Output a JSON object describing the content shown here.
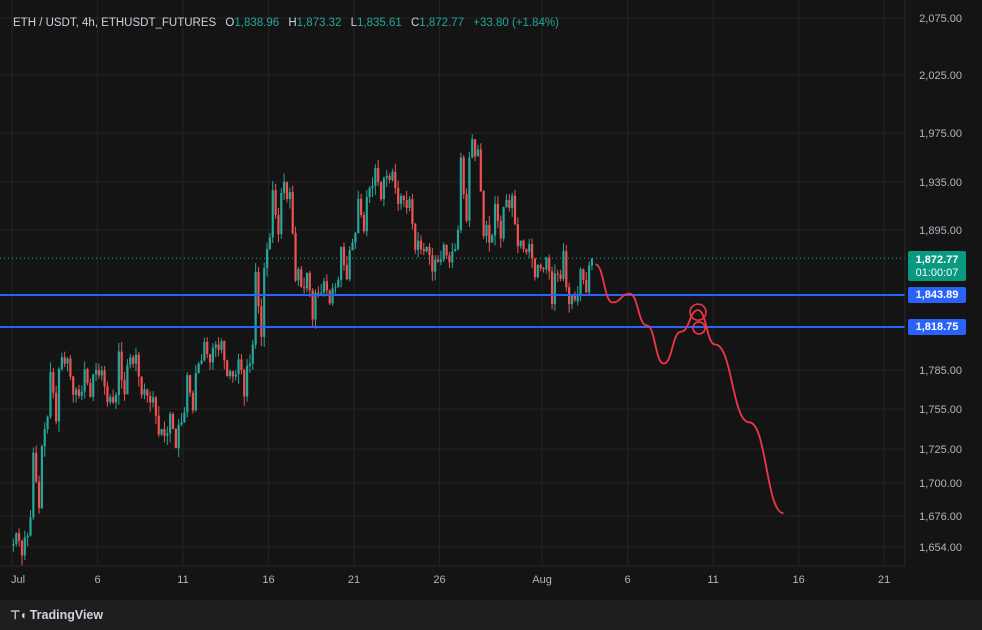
{
  "header": {
    "symbol": "ETH / USDT, 4h, ETHUSDT_FUTURES",
    "open_label": "O",
    "open": "1,838.96",
    "high_label": "H",
    "high": "1,873.32",
    "low_label": "L",
    "low": "1,835.61",
    "close_label": "C",
    "close": "1,872.77",
    "change": "+33.80 (+1.84%)"
  },
  "price_axis": {
    "ticks": [
      "2,075.00",
      "2,025.00",
      "1,975.00",
      "1,935.00",
      "1,895.00",
      "1,785.00",
      "1,755.00",
      "1,725.00",
      "1,700.00",
      "1,676.00",
      "1,654.00"
    ]
  },
  "badges": {
    "last_price": "1,872.77",
    "countdown": "01:00:07",
    "level_upper": "1,843.89",
    "level_lower": "1,818.75"
  },
  "colors": {
    "up": "#26a69a",
    "down": "#ef5350",
    "level": "#2962ff",
    "projection": "#f23645"
  },
  "footer": {
    "brand": "TradingView",
    "logo": "tradingview-logo"
  },
  "chart_data": {
    "type": "candlestick",
    "interval": "4h",
    "x_ticks": [
      "Jul",
      "6",
      "11",
      "16",
      "21",
      "26",
      "Aug",
      "6",
      "11",
      "16",
      "21"
    ],
    "horizontal_levels": [
      1843.89,
      1818.75
    ],
    "last_price": 1872.77,
    "series_ohlc_approx": [
      {
        "date": "Jul 1",
        "o": 1655,
        "h": 1668,
        "l": 1640,
        "c": 1662
      },
      {
        "date": "Jul 2",
        "o": 1662,
        "h": 1745,
        "l": 1660,
        "c": 1740
      },
      {
        "date": "Jul 3",
        "o": 1740,
        "h": 1800,
        "l": 1725,
        "c": 1795
      },
      {
        "date": "Jul 4",
        "o": 1795,
        "h": 1800,
        "l": 1760,
        "c": 1765
      },
      {
        "date": "Jul 5",
        "o": 1765,
        "h": 1795,
        "l": 1755,
        "c": 1785
      },
      {
        "date": "Jul 6",
        "o": 1785,
        "h": 1790,
        "l": 1755,
        "c": 1760
      },
      {
        "date": "Jul 7",
        "o": 1760,
        "h": 1818,
        "l": 1755,
        "c": 1795
      },
      {
        "date": "Jul 8",
        "o": 1795,
        "h": 1805,
        "l": 1760,
        "c": 1765
      },
      {
        "date": "Jul 9",
        "o": 1765,
        "h": 1770,
        "l": 1730,
        "c": 1735
      },
      {
        "date": "Jul 10",
        "o": 1735,
        "h": 1760,
        "l": 1715,
        "c": 1745
      },
      {
        "date": "Jul 11",
        "o": 1745,
        "h": 1795,
        "l": 1740,
        "c": 1790
      },
      {
        "date": "Jul 12",
        "o": 1790,
        "h": 1815,
        "l": 1785,
        "c": 1805
      },
      {
        "date": "Jul 13",
        "o": 1805,
        "h": 1815,
        "l": 1775,
        "c": 1780
      },
      {
        "date": "Jul 14",
        "o": 1780,
        "h": 1800,
        "l": 1750,
        "c": 1790
      },
      {
        "date": "Jul 15",
        "o": 1790,
        "h": 1890,
        "l": 1785,
        "c": 1880
      },
      {
        "date": "Jul 16",
        "o": 1880,
        "h": 1948,
        "l": 1875,
        "c": 1935
      },
      {
        "date": "Jul 17",
        "o": 1935,
        "h": 1940,
        "l": 1840,
        "c": 1850
      },
      {
        "date": "Jul 18",
        "o": 1850,
        "h": 1870,
        "l": 1810,
        "c": 1845
      },
      {
        "date": "Jul 19",
        "o": 1845,
        "h": 1860,
        "l": 1830,
        "c": 1850
      },
      {
        "date": "Jul 20",
        "o": 1850,
        "h": 1895,
        "l": 1845,
        "c": 1885
      },
      {
        "date": "Jul 21",
        "o": 1885,
        "h": 1935,
        "l": 1880,
        "c": 1930
      },
      {
        "date": "Jul 22",
        "o": 1930,
        "h": 1955,
        "l": 1910,
        "c": 1940
      },
      {
        "date": "Jul 23",
        "o": 1940,
        "h": 1950,
        "l": 1910,
        "c": 1920
      },
      {
        "date": "Jul 24",
        "o": 1920,
        "h": 1930,
        "l": 1870,
        "c": 1880
      },
      {
        "date": "Jul 25",
        "o": 1880,
        "h": 1885,
        "l": 1855,
        "c": 1870
      },
      {
        "date": "Jul 26",
        "o": 1870,
        "h": 1890,
        "l": 1865,
        "c": 1880
      },
      {
        "date": "Jul 27",
        "o": 1880,
        "h": 1985,
        "l": 1878,
        "c": 1970
      },
      {
        "date": "Jul 28",
        "o": 1970,
        "h": 1975,
        "l": 1875,
        "c": 1885
      },
      {
        "date": "Jul 29",
        "o": 1885,
        "h": 1930,
        "l": 1875,
        "c": 1920
      },
      {
        "date": "Jul 30",
        "o": 1920,
        "h": 1935,
        "l": 1875,
        "c": 1880
      },
      {
        "date": "Jul 31",
        "o": 1880,
        "h": 1890,
        "l": 1850,
        "c": 1865
      },
      {
        "date": "Aug 1",
        "o": 1865,
        "h": 1880,
        "l": 1820,
        "c": 1860
      },
      {
        "date": "Aug 2",
        "o": 1860,
        "h": 1895,
        "l": 1830,
        "c": 1840
      },
      {
        "date": "Aug 3",
        "o": 1838.96,
        "h": 1873.32,
        "l": 1835.61,
        "c": 1872.77
      }
    ],
    "projection_path": [
      {
        "date": "Aug 4",
        "y": 1868
      },
      {
        "date": "Aug 5",
        "y": 1838
      },
      {
        "date": "Aug 6",
        "y": 1845
      },
      {
        "date": "Aug 7",
        "y": 1820
      },
      {
        "date": "Aug 8",
        "y": 1790
      },
      {
        "date": "Aug 9",
        "y": 1815
      },
      {
        "date": "Aug 10",
        "y": 1832
      },
      {
        "date": "Aug 11",
        "y": 1805
      },
      {
        "date": "Aug 13",
        "y": 1745
      },
      {
        "date": "Aug 15",
        "y": 1678
      }
    ]
  }
}
